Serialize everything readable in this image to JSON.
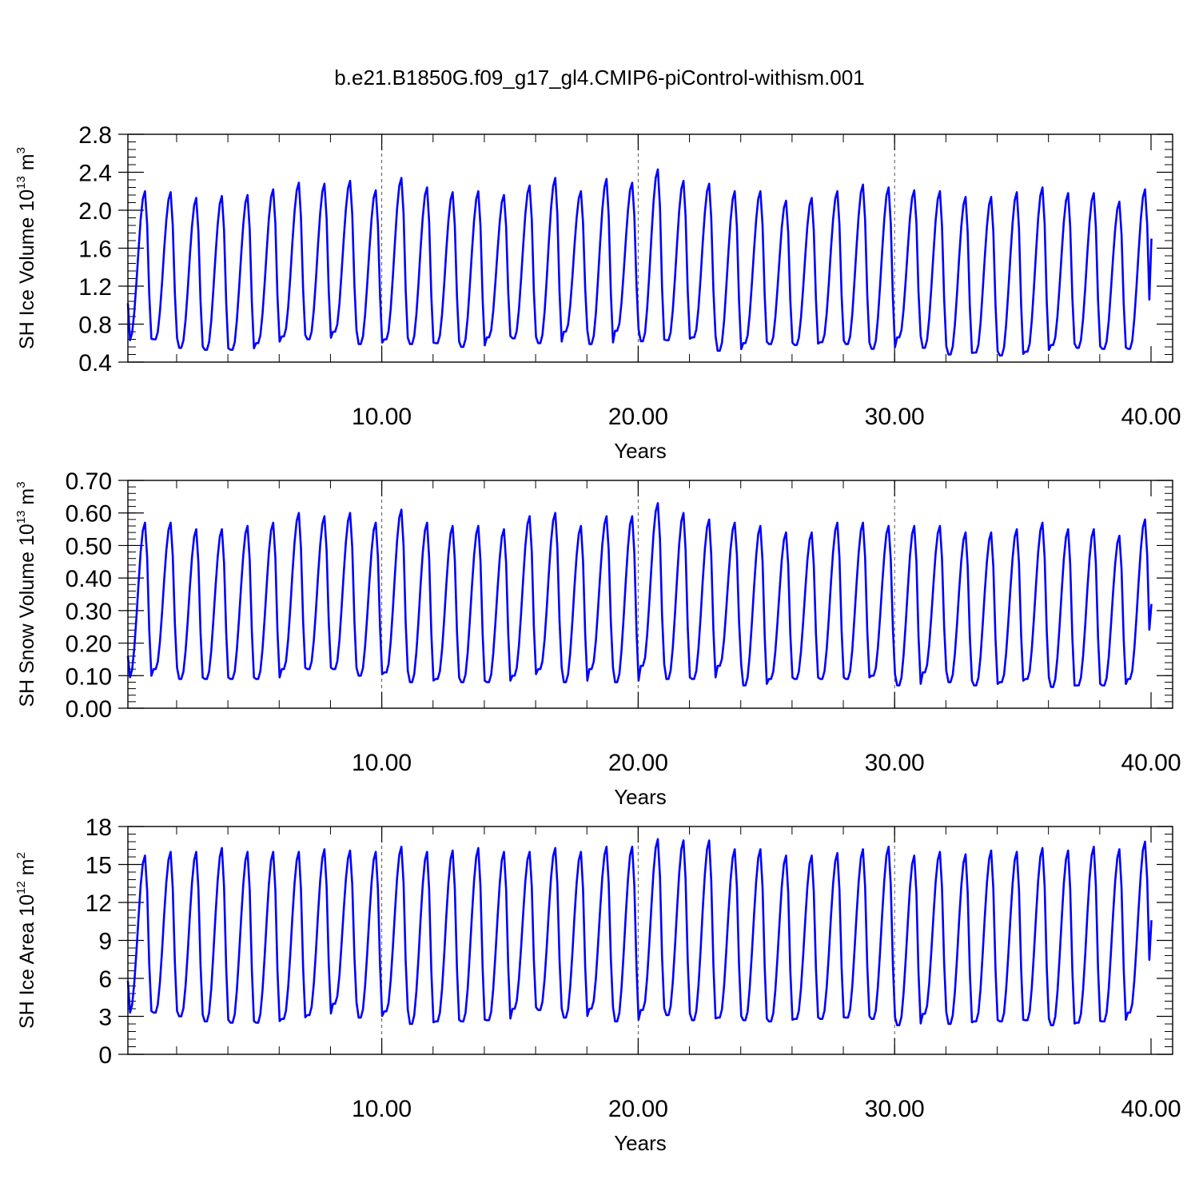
{
  "figure": {
    "title": "b.e21.B1850G.f09_g17_gl4.CMIP6-piControl-withism.001",
    "line_color": "#0000ff"
  },
  "chart_data": [
    {
      "type": "line",
      "title": "b.e21.B1850G.f09_g17_gl4.CMIP6-piControl-withism.001",
      "xlabel": "Years",
      "ylabel": {
        "main": "SH Ice Volume 10",
        "exponent": "13",
        "unit": " m",
        "unit_exp": "3"
      },
      "xlim": [
        0.1,
        40.0
      ],
      "ylim": [
        0.4,
        2.8
      ],
      "xticks": [
        10,
        20,
        30,
        40
      ],
      "xtick_labels": [
        "10.00",
        "20.00",
        "30.00",
        "40.00"
      ],
      "yticks": [
        0.4,
        0.8,
        1.2,
        1.6,
        2.0,
        2.4,
        2.8
      ],
      "ytick_labels": [
        "0.4",
        "0.8",
        "1.2",
        "1.6",
        "2.0",
        "2.4",
        "2.8"
      ],
      "minor_x_step": 2,
      "minor_y_step": 0.08,
      "grid": "dashed vertical lines at x = 10, 20, 30",
      "series": [
        {
          "start_value": 1.02,
          "end_value": 1.7,
          "annual_max": [
            2.2,
            2.19,
            2.13,
            2.15,
            2.16,
            2.22,
            2.29,
            2.28,
            2.31,
            2.21,
            2.34,
            2.24,
            2.19,
            2.2,
            2.16,
            2.26,
            2.34,
            2.2,
            2.33,
            2.29,
            2.43,
            2.31,
            2.28,
            2.2,
            2.2,
            2.1,
            2.13,
            2.2,
            2.27,
            2.24,
            2.21,
            2.2,
            2.14,
            2.14,
            2.19,
            2.24,
            2.18,
            2.18,
            2.09,
            2.22
          ],
          "annual_min": [
            0.63,
            0.64,
            0.55,
            0.53,
            0.53,
            0.6,
            0.67,
            0.64,
            0.72,
            0.59,
            0.64,
            0.59,
            0.6,
            0.56,
            0.66,
            0.65,
            0.6,
            0.72,
            0.59,
            0.73,
            0.62,
            0.63,
            0.66,
            0.52,
            0.6,
            0.59,
            0.58,
            0.61,
            0.59,
            0.54,
            0.66,
            0.55,
            0.48,
            0.5,
            0.47,
            0.51,
            0.58,
            0.55,
            0.54,
            0.54
          ]
        }
      ]
    },
    {
      "type": "line",
      "xlabel": "Years",
      "ylabel": {
        "main": "SH Snow Volume 10",
        "exponent": "13",
        "unit": " m",
        "unit_exp": "3"
      },
      "xlim": [
        0.1,
        40.0
      ],
      "ylim": [
        0.0,
        0.7
      ],
      "xticks": [
        10,
        20,
        30,
        40
      ],
      "xtick_labels": [
        "10.00",
        "20.00",
        "30.00",
        "40.00"
      ],
      "yticks": [
        0.0,
        0.1,
        0.2,
        0.3,
        0.4,
        0.5,
        0.6,
        0.7
      ],
      "ytick_labels": [
        "0.00",
        "0.10",
        "0.20",
        "0.30",
        "0.40",
        "0.50",
        "0.60",
        "0.70"
      ],
      "minor_x_step": 2,
      "minor_y_step": 0.02,
      "grid": "dashed vertical lines at x = 10, 20, 30",
      "series": [
        {
          "start_value": 0.16,
          "end_value": 0.32,
          "annual_max": [
            0.57,
            0.57,
            0.55,
            0.55,
            0.56,
            0.57,
            0.6,
            0.59,
            0.6,
            0.57,
            0.61,
            0.57,
            0.56,
            0.56,
            0.55,
            0.59,
            0.6,
            0.56,
            0.59,
            0.59,
            0.63,
            0.6,
            0.58,
            0.57,
            0.56,
            0.54,
            0.54,
            0.57,
            0.57,
            0.56,
            0.56,
            0.56,
            0.54,
            0.54,
            0.55,
            0.57,
            0.55,
            0.55,
            0.53,
            0.58
          ],
          "annual_min": [
            0.095,
            0.12,
            0.09,
            0.09,
            0.09,
            0.09,
            0.12,
            0.12,
            0.12,
            0.1,
            0.11,
            0.08,
            0.09,
            0.08,
            0.08,
            0.1,
            0.12,
            0.08,
            0.12,
            0.08,
            0.13,
            0.09,
            0.09,
            0.13,
            0.07,
            0.09,
            0.09,
            0.09,
            0.09,
            0.1,
            0.07,
            0.11,
            0.08,
            0.07,
            0.08,
            0.09,
            0.065,
            0.07,
            0.07,
            0.09
          ]
        }
      ]
    },
    {
      "type": "line",
      "xlabel": "Years",
      "ylabel": {
        "main": "SH Ice Area 10",
        "exponent": "12",
        "unit": " m",
        "unit_exp": "2"
      },
      "xlim": [
        0.1,
        40.0
      ],
      "ylim": [
        0,
        18
      ],
      "xticks": [
        10,
        20,
        30,
        40
      ],
      "xtick_labels": [
        "10.00",
        "20.00",
        "30.00",
        "40.00"
      ],
      "yticks": [
        0,
        3,
        6,
        9,
        12,
        15,
        18
      ],
      "ytick_labels": [
        "0",
        "3",
        "6",
        "9",
        "12",
        "15",
        "18"
      ],
      "minor_x_step": 2,
      "minor_y_step": 0.6,
      "grid": "dashed vertical lines at x = 10, 20, 30",
      "series": [
        {
          "start_value": 5.8,
          "end_value": 10.6,
          "annual_max": [
            15.7,
            16.0,
            16.0,
            16.3,
            16.0,
            16.0,
            16.0,
            16.2,
            16.1,
            16.0,
            16.4,
            16.0,
            16.1,
            16.3,
            16.0,
            16.0,
            16.3,
            16.0,
            16.4,
            16.4,
            17.0,
            16.9,
            16.9,
            16.2,
            16.2,
            15.7,
            15.7,
            15.9,
            16.2,
            16.4,
            15.7,
            16.0,
            15.8,
            16.1,
            16.0,
            16.3,
            16.1,
            16.4,
            16.2,
            16.8
          ],
          "annual_min": [
            3.3,
            3.3,
            3.0,
            2.6,
            2.5,
            2.5,
            2.8,
            3.1,
            4.0,
            2.9,
            3.4,
            2.4,
            2.6,
            2.6,
            2.7,
            3.6,
            3.5,
            2.9,
            3.6,
            2.6,
            3.5,
            3.1,
            2.7,
            2.9,
            2.7,
            2.6,
            2.8,
            2.8,
            2.9,
            2.8,
            2.3,
            3.2,
            2.4,
            2.6,
            2.6,
            2.7,
            2.3,
            2.5,
            2.6,
            3.3
          ]
        }
      ]
    }
  ]
}
